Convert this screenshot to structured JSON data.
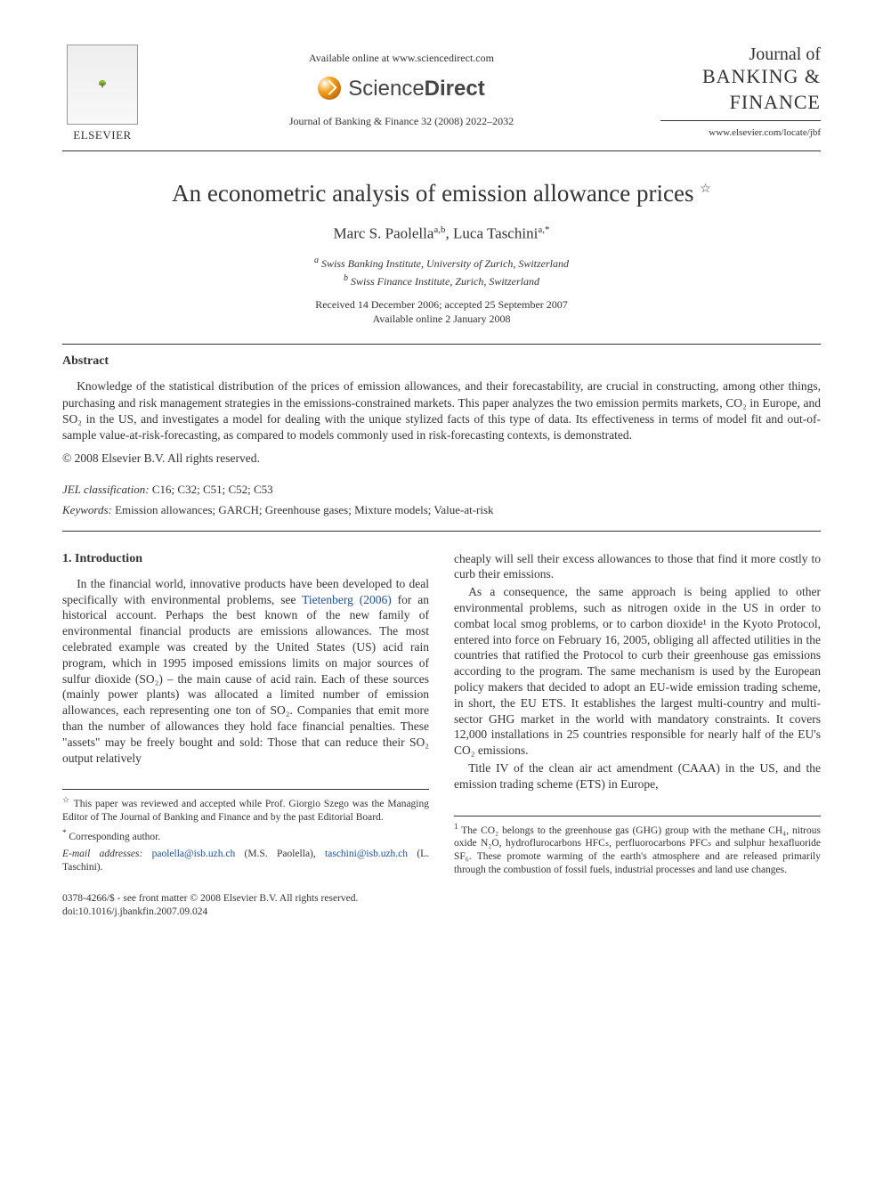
{
  "colors": {
    "text": "#333333",
    "link": "#1a4fa3",
    "rule": "#333333",
    "background": "#ffffff"
  },
  "typography": {
    "body_family": "Times New Roman",
    "title_size_pt": 27,
    "author_size_pt": 17,
    "body_size_pt": 13.5,
    "footnote_size_pt": 11.5
  },
  "header": {
    "elsevier": "ELSEVIER",
    "available_line": "Available online at www.sciencedirect.com",
    "sd_brand": "ScienceDirect",
    "journal_ref": "Journal of Banking & Finance 32 (2008) 2022–2032",
    "journal_name_top": "Journal of",
    "journal_name_main": "BANKING & FINANCE",
    "journal_url": "www.elsevier.com/locate/jbf"
  },
  "title": "An econometric analysis of emission allowance prices",
  "title_star": "☆",
  "authors": {
    "a1_name": "Marc S. Paolella",
    "a1_aff": "a,b",
    "a2_name": "Luca Taschini",
    "a2_aff": "a,*"
  },
  "affiliations": {
    "a": "Swiss Banking Institute, University of Zurich, Switzerland",
    "b": "Swiss Finance Institute, Zurich, Switzerland"
  },
  "dates": {
    "received_accepted": "Received 14 December 2006; accepted 25 September 2007",
    "online": "Available online 2 January 2008"
  },
  "abstract": {
    "head": "Abstract",
    "text": "Knowledge of the statistical distribution of the prices of emission allowances, and their forecastability, are crucial in constructing, among other things, purchasing and risk management strategies in the emissions-constrained markets. This paper analyzes the two emission permits markets, CO₂ in Europe, and SO₂ in the US, and investigates a model for dealing with the unique stylized facts of this type of data. Its effectiveness in terms of model fit and out-of-sample value-at-risk-forecasting, as compared to models commonly used in risk-forecasting contexts, is demonstrated.",
    "copyright": "© 2008 Elsevier B.V. All rights reserved."
  },
  "jel": {
    "label": "JEL classification:",
    "codes": "C16; C32; C51; C52; C53"
  },
  "keywords": {
    "label": "Keywords:",
    "text": "Emission allowances; GARCH; Greenhouse gases; Mixture models; Value-at-risk"
  },
  "section1": {
    "head": "1. Introduction",
    "p1a": "In the financial world, innovative products have been developed to deal specifically with environmental problems, see ",
    "p1_link": "Tietenberg (2006)",
    "p1b": " for an historical account. Perhaps the best known of the new family of environmental financial products are emissions allowances. The most celebrated example was created by the United States (US) acid rain program, which in 1995 imposed emissions limits on major sources of sulfur dioxide (SO₂) – the main cause of acid rain. Each of these sources (mainly power plants) was allocated a limited number of emission allowances, each representing one ton of SO₂. Companies that emit more than the number of allowances they hold face financial penalties. These \"assets\" may be freely bought and sold: Those that can reduce their SO₂ output relatively",
    "p2": "cheaply will sell their excess allowances to those that find it more costly to curb their emissions.",
    "p3": "As a consequence, the same approach is being applied to other environmental problems, such as nitrogen oxide in the US in order to combat local smog problems, or to carbon dioxide¹ in the Kyoto Protocol, entered into force on February 16, 2005, obliging all affected utilities in the countries that ratified the Protocol to curb their greenhouse gas emissions according to the program. The same mechanism is used by the European policy makers that decided to adopt an EU-wide emission trading scheme, in short, the EU ETS. It establishes the largest multi-country and multi-sector GHG market in the world with mandatory constraints. It covers 12,000 installations in 25 countries responsible for nearly half of the EU's CO₂ emissions.",
    "p4": "Title IV of the clean air act amendment (CAAA) in the US, and the emission trading scheme (ETS) in Europe,"
  },
  "footnotes": {
    "star": "This paper was reviewed and accepted while Prof. Giorgio Szego was the Managing Editor of The Journal of Banking and Finance and by the past Editorial Board.",
    "corr_label": "Corresponding author.",
    "email_label": "E-mail addresses:",
    "email1": "paolella@isb.uzh.ch",
    "email1_who": "(M.S. Paolella),",
    "email2": "taschini@isb.uzh.ch",
    "email2_who": "(L. Taschini).",
    "fn1": "The CO₂ belongs to the greenhouse gas (GHG) group with the methane CH₄, nitrous oxide N₂O, hydroflurocarbons HFCₛ, perfluorocarbons PFCₛ and sulphur hexafluoride SF₆. These promote warming of the earth's atmosphere and are released primarily through the combustion of fossil fuels, industrial processes and land use changes."
  },
  "bottom": {
    "issn": "0378-4266/$ - see front matter © 2008 Elsevier B.V. All rights reserved.",
    "doi": "doi:10.1016/j.jbankfin.2007.09.024"
  }
}
